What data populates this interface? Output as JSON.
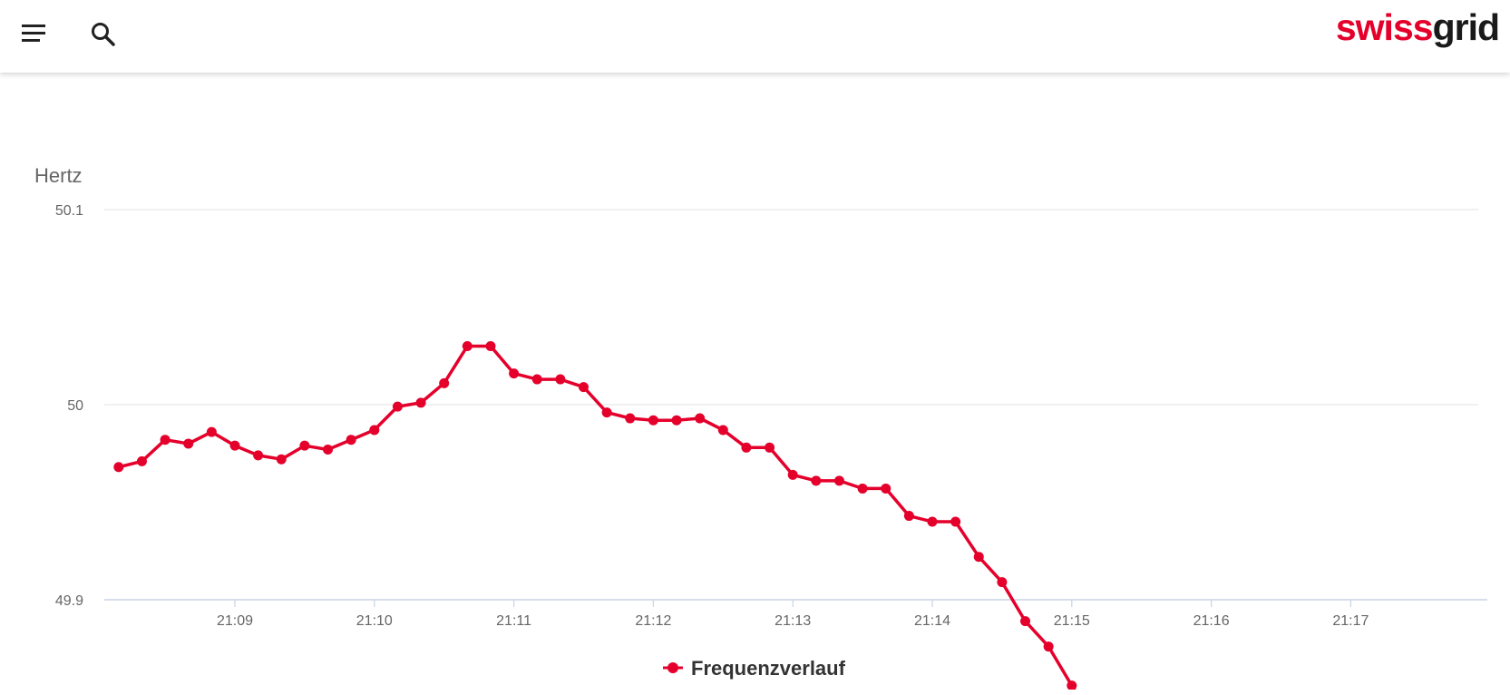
{
  "header": {
    "logo_part1": "swiss",
    "logo_part2": "grid",
    "menu_icon": "hamburger-menu-icon",
    "search_icon": "search-icon"
  },
  "chart_data": {
    "type": "line",
    "title": "",
    "ylabel": "Hertz",
    "xlabel": "",
    "ylim": [
      49.9,
      50.1
    ],
    "y_ticks": [
      "50.1",
      "50",
      "49.9"
    ],
    "x_ticks": [
      "21:09",
      "21:10",
      "21:11",
      "21:12",
      "21:13",
      "21:14",
      "21:15",
      "21:16",
      "21:17"
    ],
    "grid": true,
    "legend": "bottom-center",
    "color": "#e4002b",
    "series": [
      {
        "name": "Frequenzverlauf",
        "x": [
          "21:08:10",
          "21:08:20",
          "21:08:30",
          "21:08:40",
          "21:08:50",
          "21:09:00",
          "21:09:10",
          "21:09:20",
          "21:09:30",
          "21:09:40",
          "21:09:50",
          "21:10:00",
          "21:10:10",
          "21:10:20",
          "21:10:30",
          "21:10:40",
          "21:10:50",
          "21:11:00",
          "21:11:10",
          "21:11:20",
          "21:11:30",
          "21:11:40",
          "21:11:50",
          "21:12:00",
          "21:12:10",
          "21:12:20",
          "21:12:30",
          "21:12:40",
          "21:12:50",
          "21:13:00",
          "21:13:10",
          "21:13:20",
          "21:13:30",
          "21:13:40",
          "21:13:50",
          "21:14:00",
          "21:14:10",
          "21:14:20",
          "21:14:30",
          "21:14:40",
          "21:14:50",
          "21:15:00"
        ],
        "values": [
          49.968,
          49.971,
          49.982,
          49.98,
          49.986,
          49.979,
          49.974,
          49.972,
          49.979,
          49.977,
          49.982,
          49.987,
          49.999,
          50.001,
          50.011,
          50.03,
          50.03,
          50.016,
          50.013,
          50.013,
          50.009,
          49.996,
          49.993,
          49.992,
          49.992,
          49.993,
          49.987,
          49.978,
          49.978,
          49.964,
          49.961,
          49.961,
          49.957,
          49.957,
          49.943,
          49.94,
          49.94,
          49.922,
          49.909,
          49.889,
          49.876,
          49.856
        ]
      }
    ]
  }
}
